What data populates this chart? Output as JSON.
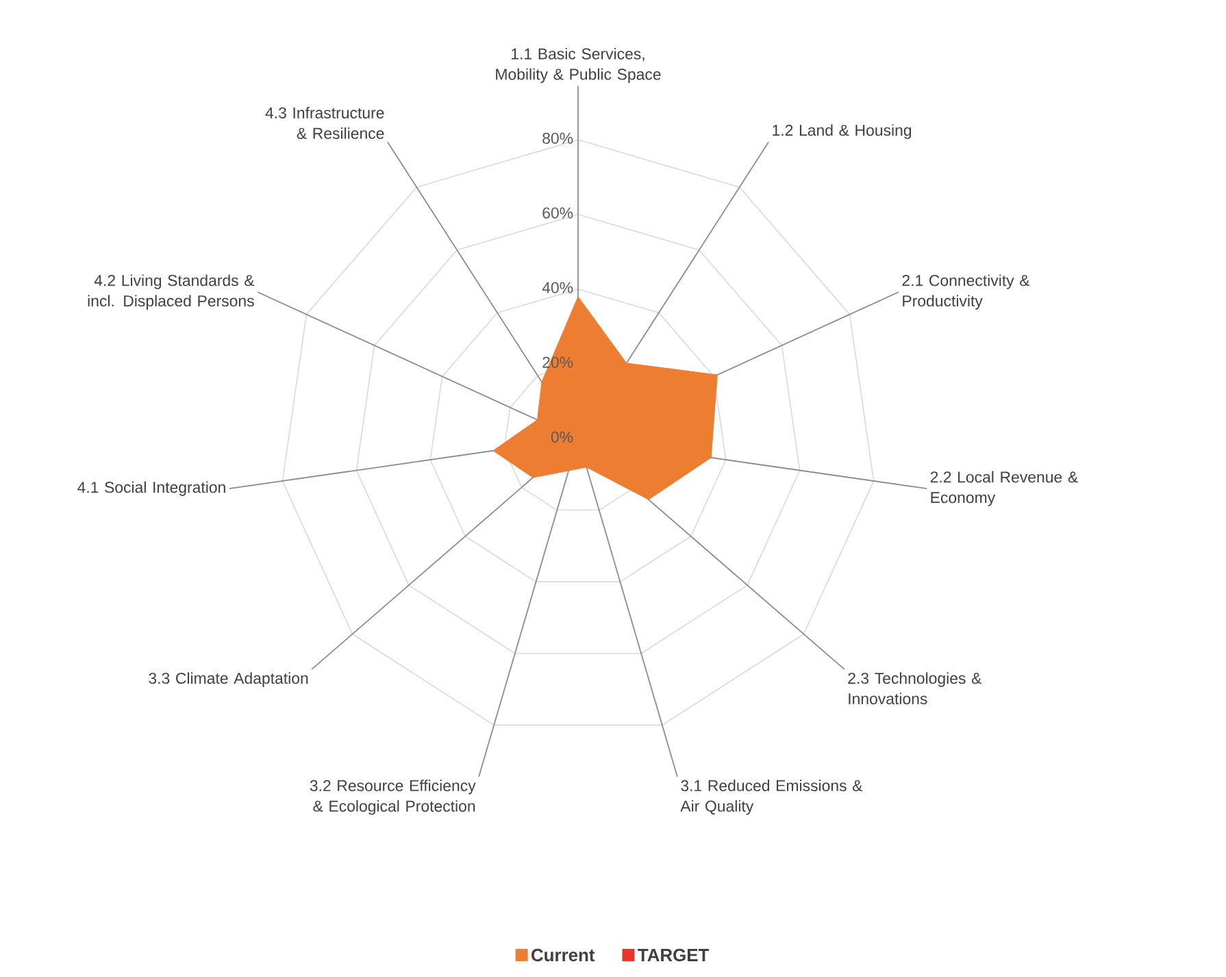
{
  "chart_data": {
    "type": "radar",
    "categories": [
      "1.1 Basic Services, Mobility & Public Space",
      "1.2 Land & Housing",
      "2.1 Connectivity & Productivity",
      "2.2 Local Revenue & Economy",
      "2.3 Technologies & Innovations",
      "3.1 Reduced Emissions & Air Quality",
      "3.2 Resource Efficiency & Ecological Protection",
      "3.3 Climate Adaptation",
      "4.1 Social Integration",
      "4.2 Living Standards & incl. Displaced Persons",
      "4.3 Infrastructure & Resilience"
    ],
    "series": [
      {
        "name": "Current",
        "color": "#ed7d31",
        "values": [
          38,
          24,
          41,
          36,
          25,
          8,
          9,
          16,
          23,
          12,
          18
        ]
      },
      {
        "name": "TARGET",
        "color": "#e8352b",
        "values": [
          null,
          null,
          null,
          null,
          null,
          null,
          null,
          null,
          null,
          null,
          null
        ]
      }
    ],
    "ylim": [
      0,
      80
    ],
    "yticks": [
      {
        "value": 0,
        "label": "0%"
      },
      {
        "value": 20,
        "label": "20%"
      },
      {
        "value": 40,
        "label": "40%"
      },
      {
        "value": 60,
        "label": "60%"
      },
      {
        "value": 80,
        "label": "80%"
      }
    ],
    "grid": true,
    "legend": "bottom"
  }
}
